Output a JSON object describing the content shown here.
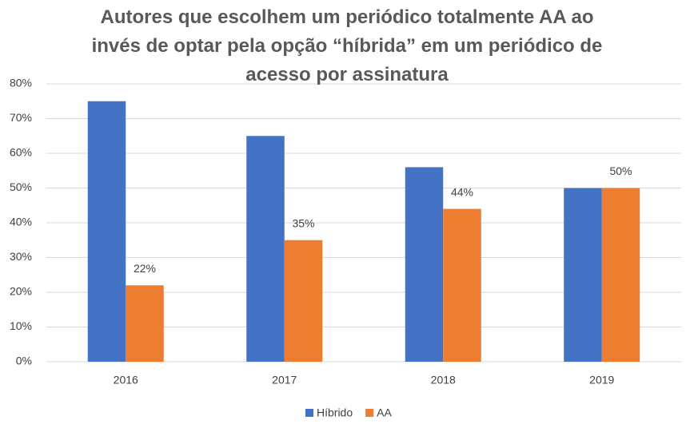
{
  "chart_data": {
    "type": "bar",
    "title": "Autores que escolhem um periódico totalmente AA ao invés de optar pela opção “híbrida” em um periódico de acesso por assinatura",
    "categories": [
      "2016",
      "2017",
      "2018",
      "2019"
    ],
    "series": [
      {
        "name": "Híbrido",
        "color": "#4472c4",
        "values": [
          75,
          65,
          56,
          50
        ]
      },
      {
        "name": "AA",
        "color": "#ed7d31",
        "values": [
          22,
          35,
          44,
          50
        ],
        "value_labels": [
          "22%",
          "35%",
          "44%",
          "50%"
        ]
      }
    ],
    "ylim": [
      0,
      80
    ],
    "yticks": [
      {
        "value": 0,
        "label": "0%"
      },
      {
        "value": 10,
        "label": "10%"
      },
      {
        "value": 20,
        "label": "20%"
      },
      {
        "value": 30,
        "label": "30%"
      },
      {
        "value": 40,
        "label": "40%"
      },
      {
        "value": 50,
        "label": "50%"
      },
      {
        "value": 60,
        "label": "60%"
      },
      {
        "value": 70,
        "label": "70%"
      },
      {
        "value": 80,
        "label": "80%"
      }
    ],
    "grid": true,
    "legend": "bottom"
  }
}
